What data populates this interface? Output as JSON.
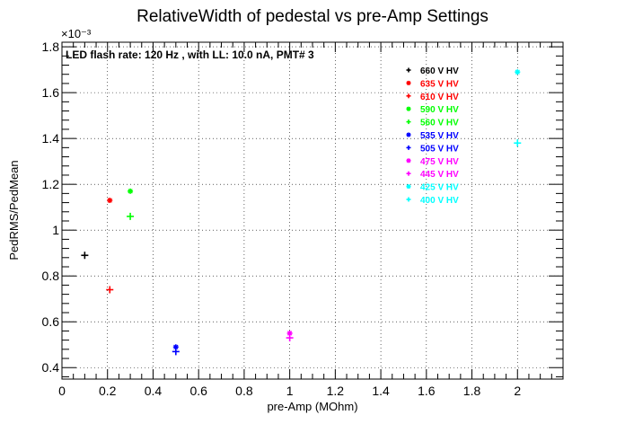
{
  "chart_data": {
    "type": "scatter",
    "title": "RelativeWidth of pedestal vs pre-Amp Settings",
    "annotation": "LED flash rate: 120 Hz , with LL: 10.0 nA, PMT# 3",
    "xlabel": "pre-Amp (MOhm)",
    "ylabel": "PedRMS/PedMean",
    "y_exponent": "×10⁻³",
    "xlim": [
      0,
      2.2
    ],
    "ylim": [
      0.35,
      1.82
    ],
    "xticks": [
      0,
      0.2,
      0.4,
      0.6,
      0.8,
      1,
      1.2,
      1.4,
      1.6,
      1.8,
      2
    ],
    "xtick_labels": [
      "0",
      "0.2",
      "0.4",
      "0.6",
      "0.8",
      "1",
      "1.2",
      "1.4",
      "1.6",
      "1.8",
      "2"
    ],
    "yticks": [
      0.4,
      0.6,
      0.8,
      1,
      1.2,
      1.4,
      1.6,
      1.8
    ],
    "ytick_labels": [
      "0.4",
      "0.6",
      "0.8",
      "1",
      "1.2",
      "1.4",
      "1.6",
      "1.8"
    ],
    "grid": true,
    "legend_position": "top-right",
    "series": [
      {
        "name": "660 V HV",
        "color": "#000000",
        "marker": "plus",
        "points": [
          [
            0.1,
            0.89
          ]
        ]
      },
      {
        "name": "635 V HV",
        "color": "#ff0000",
        "marker": "star",
        "points": [
          [
            0.21,
            1.13
          ]
        ]
      },
      {
        "name": "610 V HV",
        "color": "#ff0000",
        "marker": "plus",
        "points": [
          [
            0.21,
            0.74
          ]
        ]
      },
      {
        "name": "590 V HV",
        "color": "#00ff00",
        "marker": "star",
        "points": [
          [
            0.3,
            1.17
          ]
        ]
      },
      {
        "name": "560 V HV",
        "color": "#00ff00",
        "marker": "plus",
        "points": [
          [
            0.3,
            1.06
          ]
        ]
      },
      {
        "name": "535 V HV",
        "color": "#0000ff",
        "marker": "star",
        "points": [
          [
            0.5,
            0.49
          ]
        ]
      },
      {
        "name": "505 V HV",
        "color": "#0000ff",
        "marker": "plus",
        "points": [
          [
            0.5,
            0.47
          ]
        ]
      },
      {
        "name": "475 V HV",
        "color": "#ff00ff",
        "marker": "star",
        "points": [
          [
            1,
            0.55
          ]
        ]
      },
      {
        "name": "445 V HV",
        "color": "#ff00ff",
        "marker": "plus",
        "points": [
          [
            1,
            0.53
          ]
        ]
      },
      {
        "name": "425 V HV",
        "color": "#00ffff",
        "marker": "star",
        "points": [
          [
            2,
            1.69
          ]
        ]
      },
      {
        "name": "400 V HV",
        "color": "#00ffff",
        "marker": "plus",
        "points": [
          [
            2,
            1.38
          ]
        ]
      }
    ]
  }
}
